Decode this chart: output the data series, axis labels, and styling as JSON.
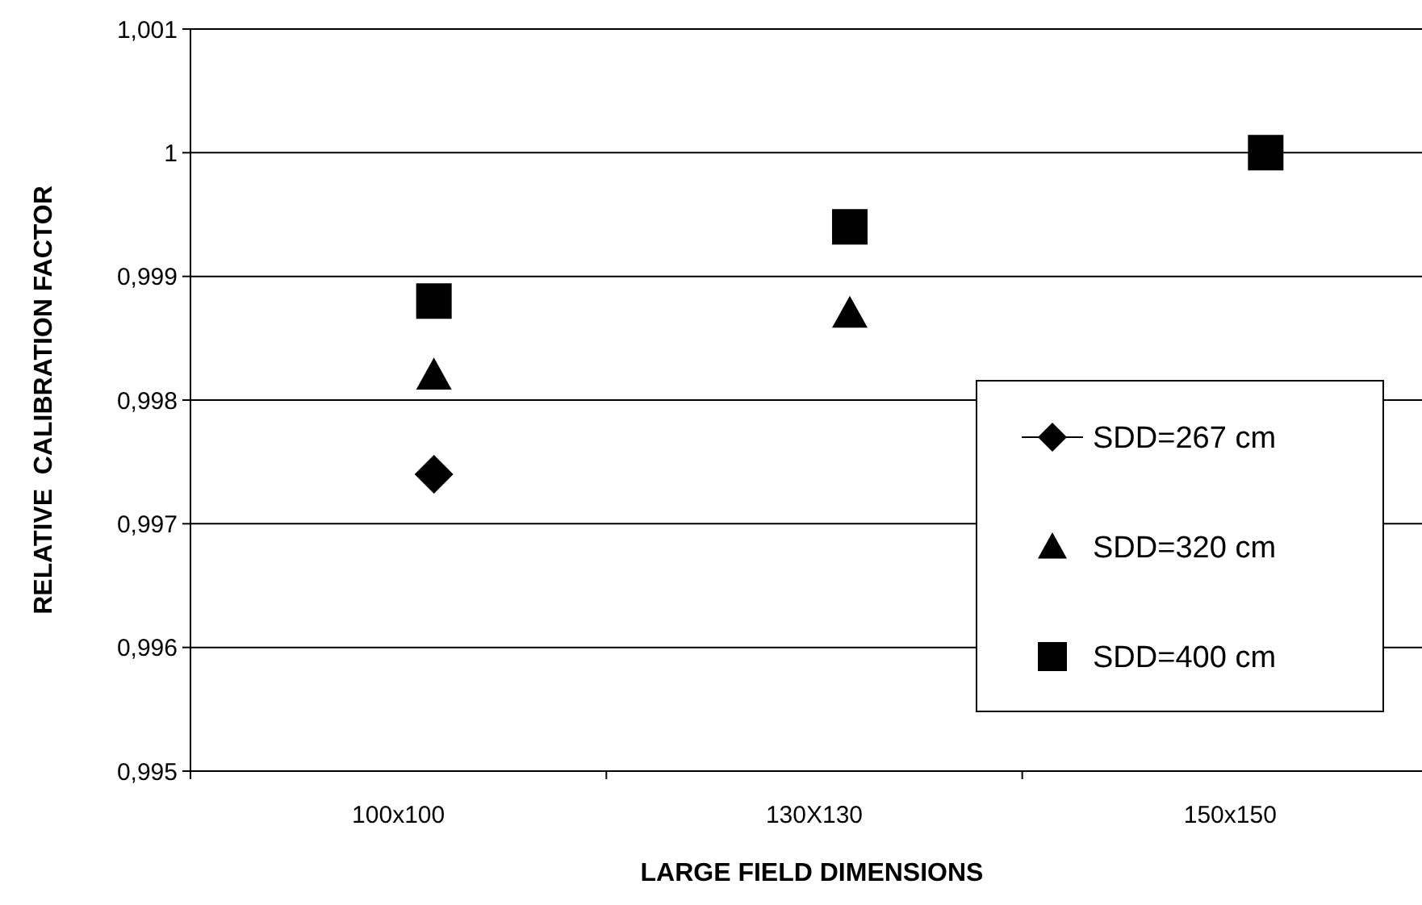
{
  "chart_data": {
    "type": "scatter",
    "xlabel": "LARGE FIELD DIMENSIONS",
    "ylabel": "RELATIVE  CALIBRATION FACTOR",
    "categories": [
      "100x100",
      "130X130",
      "150x150"
    ],
    "ylim": [
      0.995,
      1.001
    ],
    "yticks": [
      {
        "value": 0.995,
        "label": "0,995"
      },
      {
        "value": 0.996,
        "label": "0,996"
      },
      {
        "value": 0.997,
        "label": "0,997"
      },
      {
        "value": 0.998,
        "label": "0,998"
      },
      {
        "value": 0.999,
        "label": "0,999"
      },
      {
        "value": 1,
        "label": "1"
      },
      {
        "value": 1.001,
        "label": "1,001"
      }
    ],
    "grid": "y",
    "legend": "right",
    "series": [
      {
        "name": "SDD=267 cm",
        "color": "#000000",
        "marker": "diamond",
        "values": [
          0.9974,
          null,
          null
        ]
      },
      {
        "name": "SDD=320 cm",
        "color": "#000000",
        "marker": "triangle",
        "values": [
          0.9982,
          0.9987,
          null
        ]
      },
      {
        "name": "SDD=400 cm",
        "color": "#000000",
        "marker": "square",
        "values": [
          0.9988,
          0.9994,
          1
        ]
      }
    ]
  }
}
